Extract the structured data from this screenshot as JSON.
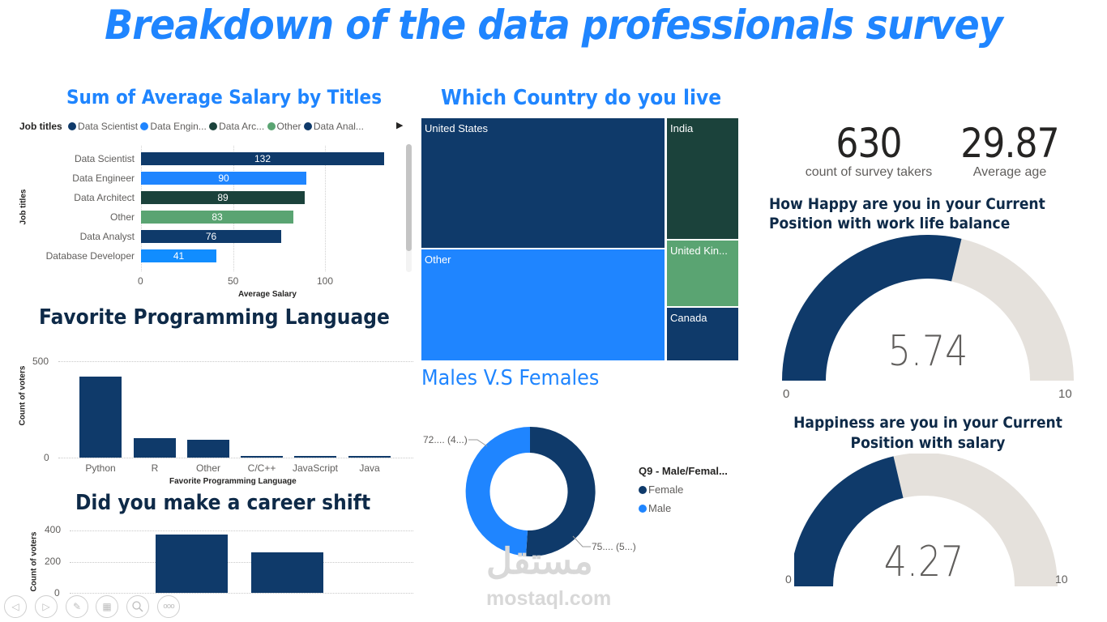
{
  "page": {
    "title": "Breakdown of the data professionals survey"
  },
  "colors": {
    "navy": "#0f3a6a",
    "bright_blue": "#1f85ff",
    "dark_green": "#1b423b",
    "green": "#5aa472",
    "light_blue": "#118dff",
    "gauge_track": "#e5e1dc"
  },
  "salary_chart": {
    "title": "Sum of Average Salary by Titles",
    "legend_title": "Job titles",
    "legend_items": [
      "Data Scientist",
      "Data Engin...",
      "Data Arc...",
      "Other",
      "Data Anal..."
    ],
    "legend_next": "▶",
    "ylabel": "Job titles",
    "xlabel": "Average Salary",
    "x_ticks": [
      "0",
      "50",
      "100"
    ]
  },
  "language_chart": {
    "title": "Favorite Programming Language",
    "ylabel": "Count of voters",
    "xlabel": "Favorite Programming Language",
    "y_ticks": [
      "500",
      "0"
    ]
  },
  "career_chart": {
    "title": "Did you make a career shift",
    "ylabel": "Count of voters",
    "y_ticks": [
      "400",
      "200",
      "0"
    ]
  },
  "country_chart": {
    "title": "Which Country do you live",
    "labels": [
      "United States",
      "Other",
      "India",
      "United Kin...",
      "Canada"
    ]
  },
  "gender_chart": {
    "title": "Males V.S Females",
    "legend_title": "Q9 - Male/Femal...",
    "legend_items": [
      "Female",
      "Male"
    ],
    "label_male": "72.... (4...)",
    "label_female": "75.... (5...)"
  },
  "kpis": {
    "count_value": "630",
    "count_label": "count of survey takers",
    "age_value": "29.87",
    "age_label": "Average age"
  },
  "gauge_worklife": {
    "title_line1": "How Happy are you in your Current",
    "title_line2": "Position with work life balance",
    "value": "5.74",
    "min": "0",
    "max": "10"
  },
  "gauge_salary": {
    "title_line1": "Happiness are you in your Current",
    "title_line2": "Position with salary",
    "value": "4.27",
    "min": "0",
    "max": "10"
  },
  "nav_buttons": [
    "previous-slide",
    "next-slide",
    "pen",
    "slides-grid",
    "zoom",
    "more-options"
  ],
  "watermark": {
    "arabic": "مستقل",
    "latin": "mostaql.com"
  },
  "chart_data": [
    {
      "type": "bar",
      "orientation": "horizontal",
      "title": "Sum of Average Salary by Titles",
      "categories": [
        "Data Scientist",
        "Data Engineer",
        "Data Architect",
        "Other",
        "Data Analyst",
        "Database Developer"
      ],
      "values": [
        132,
        90,
        89,
        83,
        76,
        41
      ],
      "colors": [
        "#0f3a6a",
        "#1f85ff",
        "#1b423b",
        "#5aa472",
        "#0f3a6a",
        "#118dff"
      ],
      "xlabel": "Average Salary",
      "ylabel": "Job titles",
      "xlim": [
        0,
        135
      ],
      "x_ticks": [
        0,
        50,
        100
      ],
      "legend": [
        "Data Scientist",
        "Data Engin...",
        "Data Arc...",
        "Other",
        "Data Anal..."
      ],
      "legend_position": "top",
      "grid": true
    },
    {
      "type": "bar",
      "title": "Favorite Programming Language",
      "categories": [
        "Python",
        "R",
        "Other",
        "C/C++",
        "JavaScript",
        "Java"
      ],
      "values": [
        421,
        102,
        94,
        4,
        4,
        3
      ],
      "xlabel": "Favorite Programming Language",
      "ylabel": "Count of voters",
      "ylim": [
        0,
        500
      ],
      "y_ticks": [
        0,
        500
      ],
      "grid": true
    },
    {
      "type": "bar",
      "title": "Did you make a career shift",
      "categories": [
        "",
        ""
      ],
      "values": [
        374,
        260
      ],
      "ylabel": "Count of voters",
      "ylim": [
        0,
        400
      ],
      "y_ticks": [
        0,
        200,
        400
      ],
      "grid": true
    },
    {
      "type": "treemap",
      "title": "Which Country do you live",
      "categories": [
        "United States",
        "Other",
        "India",
        "United Kingdom",
        "Canada"
      ],
      "values": [
        262,
        223,
        74,
        32,
        39
      ],
      "colors": [
        "#0f3a6a",
        "#1f85ff",
        "#1b423b",
        "#5aa472",
        "#0f3a6a"
      ]
    },
    {
      "type": "pie",
      "subtype": "donut",
      "title": "Males V.S Females",
      "categories": [
        "Female",
        "Male"
      ],
      "values": [
        75,
        72
      ],
      "data_labels": [
        "75.... (5...)",
        "72.... (4...)"
      ],
      "legend_title": "Q9 - Male/Femal...",
      "legend_position": "right",
      "colors": [
        "#0f3a6a",
        "#1f85ff"
      ]
    },
    {
      "type": "gauge",
      "title": "How Happy are you in your Current Position with work life balance",
      "value": 5.74,
      "min": 0,
      "max": 10
    },
    {
      "type": "gauge",
      "title": "Happiness are you in your Current Position with salary",
      "value": 4.27,
      "min": 0,
      "max": 10
    },
    {
      "type": "table",
      "title": "KPI cards",
      "categories": [
        "count of survey takers",
        "Average age"
      ],
      "values": [
        630,
        29.87
      ]
    }
  ]
}
